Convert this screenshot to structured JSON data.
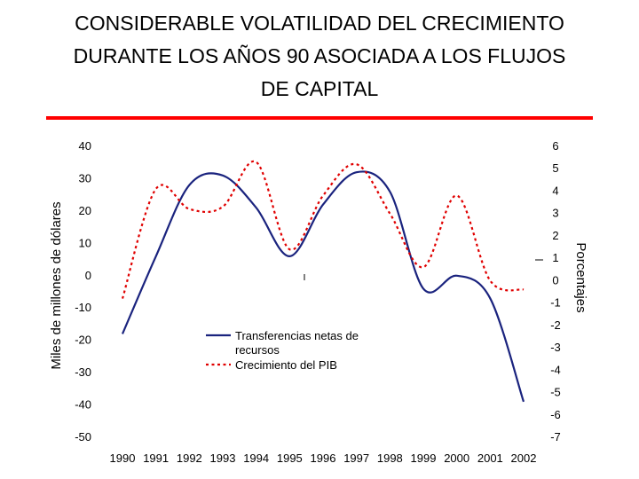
{
  "title_lines": [
    "CONSIDERABLE VOLATILIDAD DEL CRECIMIENTO",
    "DURANTE LOS AÑOS 90 ASOCIADA A LOS FLUJOS",
    "DE CAPITAL"
  ],
  "colors": {
    "accent_rule": "#ff0000",
    "series_transfers": "#1a237e",
    "series_gdp": "#e00000"
  },
  "chart_data": {
    "type": "line",
    "title": "CONSIDERABLE VOLATILIDAD DEL CRECIMIENTO DURANTE LOS AÑOS 90 ASOCIADA A LOS FLUJOS DE CAPITAL",
    "categories": [
      "1990",
      "1991",
      "1992",
      "1993",
      "1994",
      "1995",
      "1996",
      "1997",
      "1998",
      "1999",
      "2000",
      "2001",
      "2002"
    ],
    "ylabel_left": "Miles de millones de dólares",
    "ylabel_right": "Porcentajes",
    "ylim_left": [
      -50,
      40
    ],
    "ylim_right": [
      -7,
      6
    ],
    "yticks_left": [
      "40",
      "30",
      "20",
      "10",
      "0",
      "-10",
      "-20",
      "-30",
      "-40",
      "-50"
    ],
    "yticks_right": [
      "6",
      "5",
      "4",
      "3",
      "2",
      "1",
      "0",
      "-1",
      "-2",
      "-3",
      "-4",
      "-5",
      "-6",
      "-7"
    ],
    "series": [
      {
        "name": "Transferencias netas de recursos",
        "legend_lines": [
          "Transferencias netas de",
          "recursos"
        ],
        "axis": "left",
        "style": "solid",
        "values": [
          -18,
          6,
          28,
          31,
          21,
          6,
          22,
          32,
          26,
          -4,
          0,
          -7,
          -39
        ]
      },
      {
        "name": "Crecimiento del PIB",
        "legend_lines": [
          "Crecimiento del PIB"
        ],
        "axis": "right",
        "style": "dotted",
        "values": [
          -0.8,
          4.1,
          3.2,
          3.3,
          5.3,
          1.4,
          3.8,
          5.2,
          3.0,
          0.6,
          3.8,
          0.0,
          -0.4
        ]
      }
    ],
    "grid": false,
    "legend_position": "lower-center"
  }
}
